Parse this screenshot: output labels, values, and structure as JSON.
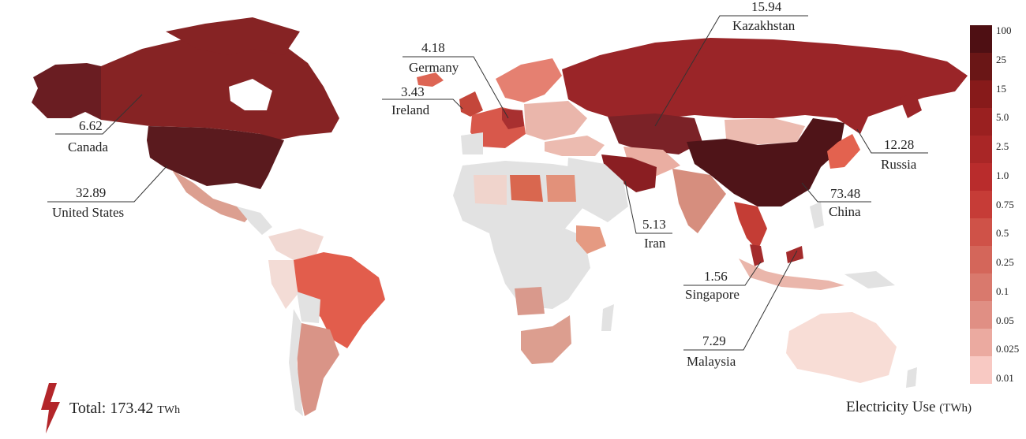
{
  "colors": {
    "no_data": "#e2e2e2",
    "low": "#f3c4b6",
    "mid": "#e57a63",
    "high": "#b72e2e",
    "max": "#4f1418"
  },
  "legend": {
    "title": "Electricity Use",
    "unit": "(TWh)",
    "ticks": [
      "100",
      "25",
      "15",
      "5.0",
      "2.5",
      "1.0",
      "0.75",
      "0.5",
      "0.25",
      "0.1",
      "0.05",
      "0.025",
      "0.01"
    ],
    "swatches": [
      "#4e0f13",
      "#6a1616",
      "#871a1a",
      "#9a2020",
      "#a92626",
      "#b92c2c",
      "#c63c37",
      "#cf5248",
      "#d4665a",
      "#d9796d",
      "#e08f84",
      "#ebaaa0",
      "#f8c9c3"
    ]
  },
  "total": {
    "label": "Total:",
    "value": "173.42",
    "unit": "TWh"
  },
  "callouts": [
    {
      "value": "6.62",
      "country": "Canada"
    },
    {
      "value": "32.89",
      "country": "United States"
    },
    {
      "value": "4.18",
      "country": "Germany"
    },
    {
      "value": "3.43",
      "country": "Ireland"
    },
    {
      "value": "15.94",
      "country": "Kazakhstan"
    },
    {
      "value": "12.28",
      "country": "Russia"
    },
    {
      "value": "73.48",
      "country": "China"
    },
    {
      "value": "5.13",
      "country": "Iran"
    },
    {
      "value": "1.56",
      "country": "Singapore"
    },
    {
      "value": "7.29",
      "country": "Malaysia"
    }
  ]
}
